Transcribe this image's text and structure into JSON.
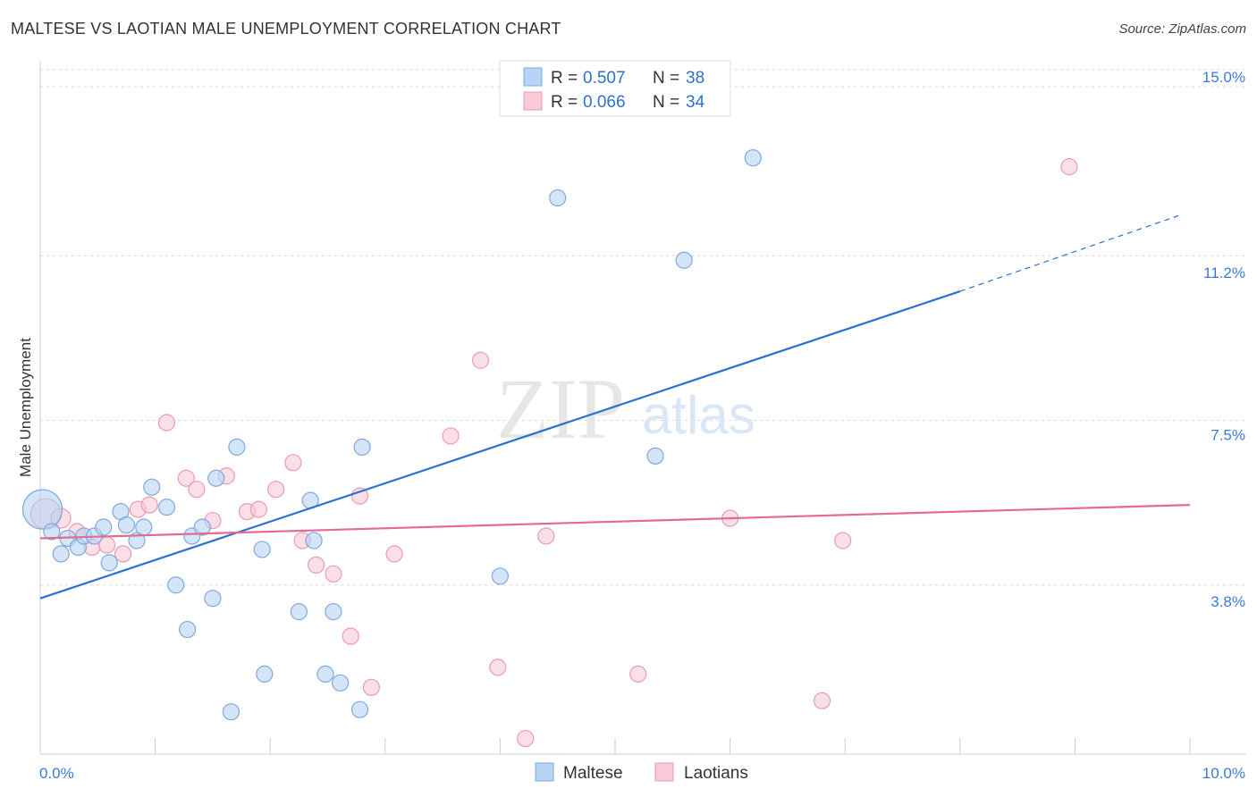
{
  "header": {
    "title": "MALTESE VS LAOTIAN MALE UNEMPLOYMENT CORRELATION CHART",
    "source": "Source: ZipAtlas.com"
  },
  "watermark": {
    "zip": "ZIP",
    "atlas": "atlas"
  },
  "legend_top": {
    "rows": [
      {
        "r_label": "R = ",
        "r_value": "0.507",
        "n_label": "N = ",
        "n_value": "38"
      },
      {
        "r_label": "R = ",
        "r_value": "0.066",
        "n_label": "N = ",
        "n_value": "34"
      }
    ]
  },
  "legend_bottom": {
    "items": [
      "Maltese",
      "Laotians"
    ]
  },
  "colors": {
    "maltese_fill": "#b8d3f3",
    "maltese_stroke": "#7ea9df",
    "maltese_line": "#2a6fd4",
    "laotian_fill": "#f9c9d6",
    "laotian_stroke": "#eb9ab2",
    "laotian_line": "#e26a93",
    "tick_text": "#3a7bd5",
    "grid": "#d9d9d9"
  },
  "chart_data": {
    "type": "scatter",
    "title": "MALTESE VS LAOTIAN MALE UNEMPLOYMENT CORRELATION CHART",
    "xlabel": "",
    "ylabel": "Male Unemployment",
    "xlim": [
      0,
      10
    ],
    "ylim": [
      0,
      15.5
    ],
    "x_ticks": [
      0,
      1,
      2,
      3,
      4,
      5,
      6,
      7,
      8,
      9,
      10
    ],
    "x_tick_labels": [
      "0.0%",
      "",
      "",
      "",
      "",
      "",
      "",
      "",
      "",
      "",
      "10.0%"
    ],
    "y_ticks": [
      3.8,
      7.5,
      11.2,
      15.0
    ],
    "y_tick_labels": [
      "3.8%",
      "7.5%",
      "11.2%",
      "15.0%"
    ],
    "grid": true,
    "legend_position": "top-center",
    "series": [
      {
        "name": "Maltese",
        "R": 0.507,
        "N": 38,
        "trend": {
          "x": [
            0,
            8.0
          ],
          "y": [
            3.5,
            10.4
          ],
          "dashed_to": [
            9.9,
            12.1
          ]
        },
        "points": [
          [
            0.02,
            5.5,
            22
          ],
          [
            0.1,
            5.0,
            9
          ],
          [
            0.18,
            4.5,
            9
          ],
          [
            0.24,
            4.85,
            9
          ],
          [
            0.33,
            4.65,
            9
          ],
          [
            0.38,
            4.9,
            9
          ],
          [
            0.47,
            4.9,
            9
          ],
          [
            0.55,
            5.1,
            9
          ],
          [
            0.6,
            4.3,
            9
          ],
          [
            0.7,
            5.45,
            9
          ],
          [
            0.75,
            5.15,
            9
          ],
          [
            0.84,
            4.8,
            9
          ],
          [
            0.9,
            5.1,
            9
          ],
          [
            0.97,
            6.0,
            9
          ],
          [
            1.1,
            5.55,
            9
          ],
          [
            1.18,
            3.8,
            9
          ],
          [
            1.28,
            2.8,
            9
          ],
          [
            1.32,
            4.9,
            9
          ],
          [
            1.41,
            5.1,
            9
          ],
          [
            1.5,
            3.5,
            9
          ],
          [
            1.53,
            6.2,
            9
          ],
          [
            1.66,
            0.95,
            9
          ],
          [
            1.71,
            6.9,
            9
          ],
          [
            1.93,
            4.6,
            9
          ],
          [
            1.95,
            1.8,
            9
          ],
          [
            2.25,
            3.2,
            9
          ],
          [
            2.35,
            5.7,
            9
          ],
          [
            2.38,
            4.8,
            9
          ],
          [
            2.48,
            1.8,
            9
          ],
          [
            2.55,
            3.2,
            9
          ],
          [
            2.61,
            1.6,
            9
          ],
          [
            2.78,
            1.0,
            9
          ],
          [
            2.8,
            6.9,
            9
          ],
          [
            4.0,
            4.0,
            9
          ],
          [
            4.5,
            12.5,
            9
          ],
          [
            5.35,
            6.7,
            9
          ],
          [
            5.6,
            11.1,
            9
          ],
          [
            6.2,
            13.4,
            9
          ]
        ]
      },
      {
        "name": "Laotians",
        "R": 0.066,
        "N": 34,
        "trend": {
          "x": [
            0,
            10.0
          ],
          "y": [
            4.85,
            5.6
          ]
        },
        "points": [
          [
            0.05,
            5.4,
            17
          ],
          [
            0.18,
            5.3,
            11
          ],
          [
            0.32,
            5.0,
            9
          ],
          [
            0.45,
            4.65,
            9
          ],
          [
            0.58,
            4.7,
            9
          ],
          [
            0.72,
            4.5,
            9
          ],
          [
            0.85,
            5.5,
            9
          ],
          [
            0.95,
            5.6,
            9
          ],
          [
            1.1,
            7.45,
            9
          ],
          [
            1.27,
            6.2,
            9
          ],
          [
            1.36,
            5.95,
            9
          ],
          [
            1.5,
            5.25,
            9
          ],
          [
            1.62,
            6.25,
            9
          ],
          [
            1.8,
            5.45,
            9
          ],
          [
            1.9,
            5.5,
            9
          ],
          [
            2.05,
            5.95,
            9
          ],
          [
            2.2,
            6.55,
            9
          ],
          [
            2.28,
            4.8,
            9
          ],
          [
            2.4,
            4.25,
            9
          ],
          [
            2.55,
            4.05,
            9
          ],
          [
            2.7,
            2.65,
            9
          ],
          [
            2.78,
            5.8,
            9
          ],
          [
            2.88,
            1.5,
            9
          ],
          [
            3.08,
            4.5,
            9
          ],
          [
            3.57,
            7.15,
            9
          ],
          [
            3.83,
            8.85,
            9
          ],
          [
            3.98,
            1.95,
            9
          ],
          [
            4.22,
            0.35,
            9
          ],
          [
            4.4,
            4.9,
            9
          ],
          [
            5.2,
            1.8,
            9
          ],
          [
            6.0,
            5.3,
            9
          ],
          [
            6.8,
            1.2,
            9
          ],
          [
            6.98,
            4.8,
            9
          ],
          [
            8.95,
            13.2,
            9
          ]
        ]
      }
    ]
  }
}
